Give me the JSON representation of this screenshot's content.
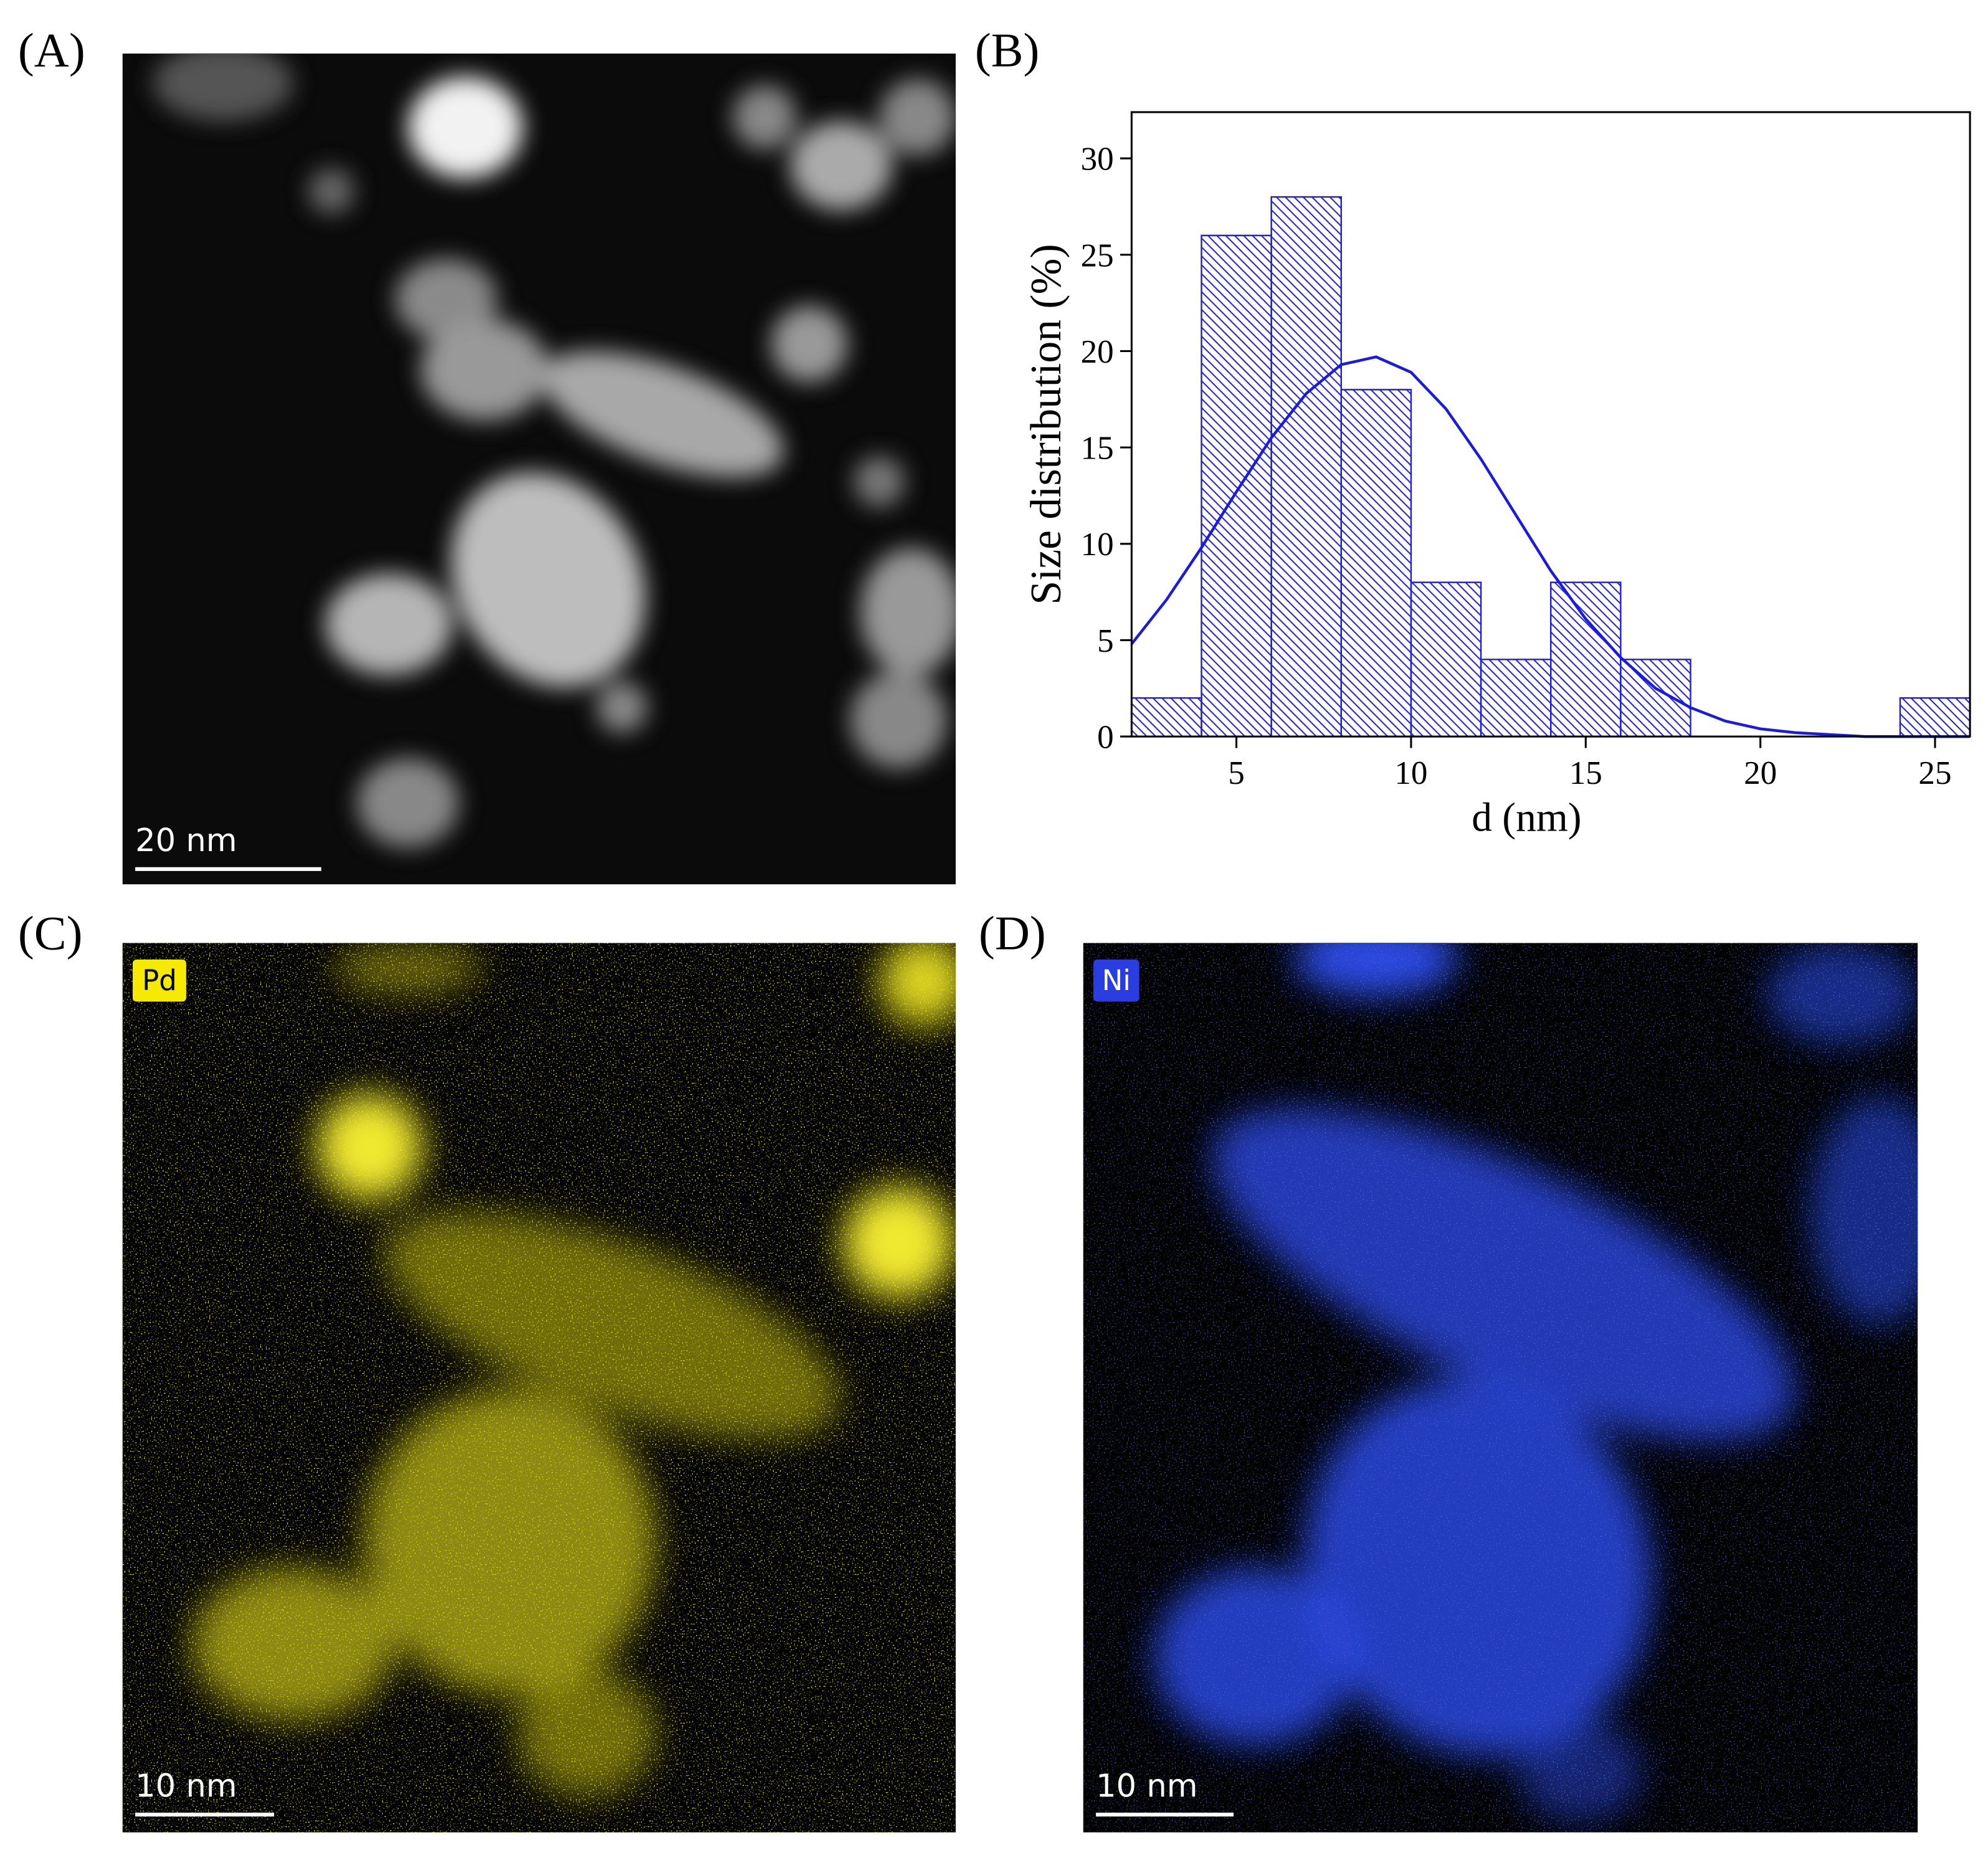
{
  "panels": [
    {
      "label": "(A)",
      "scale_bar": "20 nm"
    },
    {
      "label": "(B)"
    },
    {
      "label": "(C)",
      "element": "Pd",
      "scale_bar": "10 nm"
    },
    {
      "label": "(D)",
      "element": "Ni",
      "scale_bar": "10 nm"
    }
  ],
  "chart_data": {
    "type": "histogram",
    "xlabel": "d (nm)",
    "ylabel": "Size distribution (%)",
    "bins": [
      2,
      4,
      6,
      8,
      10,
      12,
      14,
      16,
      18,
      20,
      22,
      24,
      26
    ],
    "values": [
      2,
      26,
      28,
      18,
      8,
      4,
      8,
      4,
      0,
      0,
      0,
      2
    ],
    "color": "#2222cc",
    "line": {
      "type": "line",
      "color": "#1a1ae0",
      "x": [
        2,
        3,
        4,
        5,
        6,
        7,
        8,
        9,
        10,
        11,
        12,
        13,
        14,
        15,
        16,
        17,
        18,
        19,
        20,
        21,
        22,
        23,
        24,
        25,
        26
      ],
      "values": [
        4.8,
        7.1,
        9.8,
        12.7,
        15.5,
        17.8,
        19.3,
        19.7,
        18.9,
        17.0,
        14.4,
        11.5,
        8.6,
        6.1,
        4.1,
        2.5,
        1.5,
        0.8,
        0.4,
        0.2,
        0.1,
        0,
        0,
        0,
        0
      ]
    },
    "xlim": [
      2,
      26
    ],
    "ylim": [
      0,
      32.4
    ],
    "xticks": [
      5,
      10,
      15,
      20,
      25
    ],
    "yticks": [
      0,
      5,
      10,
      15,
      20,
      25,
      30
    ]
  }
}
